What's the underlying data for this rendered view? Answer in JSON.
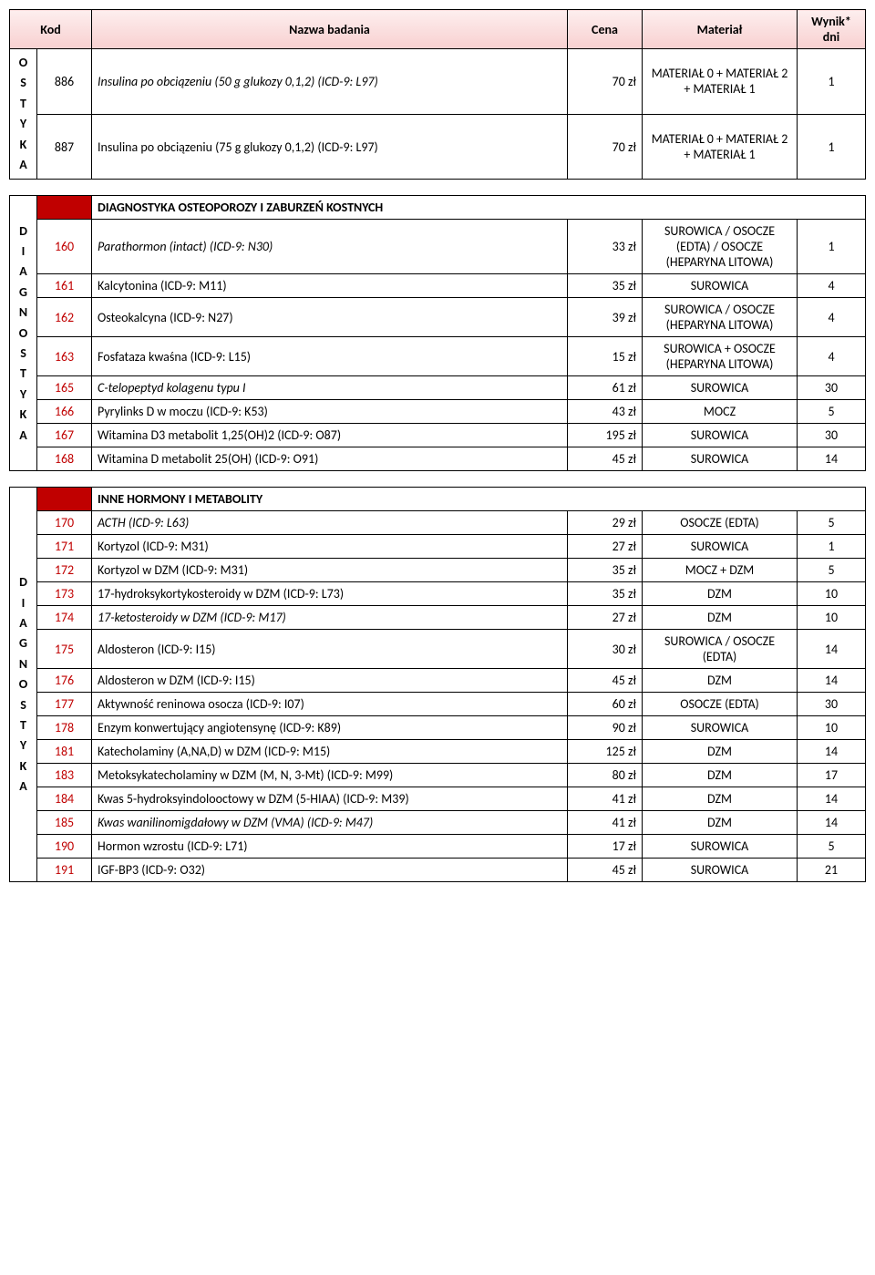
{
  "headers": {
    "kod": "Kod",
    "nazwa": "Nazwa badania",
    "cena": "Cena",
    "material": "Materiał",
    "wynik": "Wynik* dni"
  },
  "sideLabels": {
    "top": "OSTYKA",
    "mid": "DIAGNOSTYKA",
    "bot": "DIAGNOSTYKA"
  },
  "sections": [
    {
      "sideLabelKey": "top",
      "rows": [
        {
          "kod": "886",
          "kodRed": false,
          "nazwa": "Insulina po obciązeniu (50 g glukozy 0,1,2) (ICD-9: L97)",
          "italic": true,
          "cena": "70 zł",
          "material": "MATERIAŁ 0 + MATERIAŁ 2 + MATERIAŁ 1",
          "wynik": "1"
        },
        {
          "kod": "887",
          "kodRed": false,
          "nazwa": "Insulina po obciązeniu (75 g glukozy 0,1,2) (ICD-9: L97)",
          "italic": false,
          "cena": "70 zł",
          "material": "MATERIAŁ 0 + MATERIAŁ 2 + MATERIAŁ 1",
          "wynik": "1"
        }
      ]
    },
    {
      "title": "DIAGNOSTYKA OSTEOPOROZY I ZABURZEŃ KOSTNYCH",
      "sideLabelKey": "mid",
      "rows": [
        {
          "kod": "160",
          "kodRed": true,
          "nazwa": "Parathormon (intact) (ICD-9: N30)",
          "italic": true,
          "cena": "33 zł",
          "material": "SUROWICA / OSOCZE (EDTA) / OSOCZE (HEPARYNA LITOWA)",
          "wynik": "1"
        },
        {
          "kod": "161",
          "kodRed": true,
          "nazwa": "Kalcytonina (ICD-9: M11)",
          "italic": false,
          "cena": "35 zł",
          "material": "SUROWICA",
          "wynik": "4"
        },
        {
          "kod": "162",
          "kodRed": true,
          "nazwa": "Osteokalcyna (ICD-9: N27)",
          "italic": false,
          "cena": "39 zł",
          "material": "SUROWICA / OSOCZE (HEPARYNA LITOWA)",
          "wynik": "4"
        },
        {
          "kod": "163",
          "kodRed": true,
          "nazwa": "Fosfataza kwaśna (ICD-9: L15)",
          "italic": false,
          "cena": "15 zł",
          "material": "SUROWICA + OSOCZE (HEPARYNA LITOWA)",
          "wynik": "4"
        },
        {
          "kod": "165",
          "kodRed": true,
          "nazwa": "C-telopeptyd kolagenu typu I",
          "italic": true,
          "cena": "61 zł",
          "material": "SUROWICA",
          "wynik": "30"
        },
        {
          "kod": "166",
          "kodRed": true,
          "nazwa": "Pyrylinks D w moczu (ICD-9: K53)",
          "italic": false,
          "cena": "43 zł",
          "material": "MOCZ",
          "wynik": "5"
        },
        {
          "kod": "167",
          "kodRed": true,
          "nazwa": "Witamina D3 metabolit 1,25(OH)2 (ICD-9: O87)",
          "italic": false,
          "cena": "195 zł",
          "material": "SUROWICA",
          "wynik": "30"
        },
        {
          "kod": "168",
          "kodRed": true,
          "nazwa": "Witamina D metabolit 25(OH) (ICD-9: O91)",
          "italic": false,
          "cena": "45 zł",
          "material": "SUROWICA",
          "wynik": "14"
        }
      ]
    },
    {
      "title": "INNE HORMONY I METABOLITY",
      "sideLabelKey": "bot",
      "rows": [
        {
          "kod": "170",
          "kodRed": true,
          "nazwa": "ACTH (ICD-9: L63)",
          "italic": true,
          "cena": "29 zł",
          "material": "OSOCZE (EDTA)",
          "wynik": "5"
        },
        {
          "kod": "171",
          "kodRed": true,
          "nazwa": "Kortyzol (ICD-9: M31)",
          "italic": false,
          "cena": "27 zł",
          "material": "SUROWICA",
          "wynik": "1"
        },
        {
          "kod": "172",
          "kodRed": true,
          "nazwa": "Kortyzol w DZM (ICD-9: M31)",
          "italic": false,
          "cena": "35 zł",
          "material": "MOCZ + DZM",
          "wynik": "5"
        },
        {
          "kod": "173",
          "kodRed": true,
          "nazwa": "17-hydroksykortykosteroidy w DZM (ICD-9: L73)",
          "italic": false,
          "cena": "35 zł",
          "material": "DZM",
          "wynik": "10"
        },
        {
          "kod": "174",
          "kodRed": true,
          "nazwa": "17-ketosteroidy w DZM (ICD-9: M17)",
          "italic": true,
          "cena": "27 zł",
          "material": "DZM",
          "wynik": "10"
        },
        {
          "kod": "175",
          "kodRed": true,
          "nazwa": "Aldosteron (ICD-9: I15)",
          "italic": false,
          "cena": "30 zł",
          "material": "SUROWICA / OSOCZE (EDTA)",
          "wynik": "14"
        },
        {
          "kod": "176",
          "kodRed": true,
          "nazwa": "Aldosteron w DZM (ICD-9: I15)",
          "italic": false,
          "cena": "45 zł",
          "material": "DZM",
          "wynik": "14"
        },
        {
          "kod": "177",
          "kodRed": true,
          "nazwa": "Aktywność reninowa osocza (ICD-9: I07)",
          "italic": false,
          "cena": "60 zł",
          "material": "OSOCZE (EDTA)",
          "wynik": "30"
        },
        {
          "kod": "178",
          "kodRed": true,
          "nazwa": "Enzym konwertujący angiotensynę (ICD-9: K89)",
          "italic": false,
          "cena": "90 zł",
          "material": "SUROWICA",
          "wynik": "10"
        },
        {
          "kod": "181",
          "kodRed": true,
          "nazwa": "Katecholaminy (A,NA,D) w DZM (ICD-9: M15)",
          "italic": false,
          "cena": "125 zł",
          "material": "DZM",
          "wynik": "14"
        },
        {
          "kod": "183",
          "kodRed": true,
          "nazwa": "Metoksykatecholaminy w DZM (M, N, 3-Mt) (ICD-9: M99)",
          "italic": false,
          "cena": "80 zł",
          "material": "DZM",
          "wynik": "17"
        },
        {
          "kod": "184",
          "kodRed": true,
          "nazwa": "Kwas 5-hydroksyindolooctowy w DZM (5-HIAA) (ICD-9: M39)",
          "italic": false,
          "cena": "41 zł",
          "material": "DZM",
          "wynik": "14"
        },
        {
          "kod": "185",
          "kodRed": true,
          "nazwa": "Kwas wanilinomigdałowy w DZM (VMA) (ICD-9: M47)",
          "italic": true,
          "cena": "41 zł",
          "material": "DZM",
          "wynik": "14"
        },
        {
          "kod": "190",
          "kodRed": true,
          "nazwa": "Hormon wzrostu (ICD-9: L71)",
          "italic": false,
          "cena": "17 zł",
          "material": "SUROWICA",
          "wynik": "5"
        },
        {
          "kod": "191",
          "kodRed": true,
          "nazwa": "IGF-BP3 (ICD-9: O32)",
          "italic": false,
          "cena": "45 zł",
          "material": "SUROWICA",
          "wynik": "21"
        }
      ]
    }
  ]
}
